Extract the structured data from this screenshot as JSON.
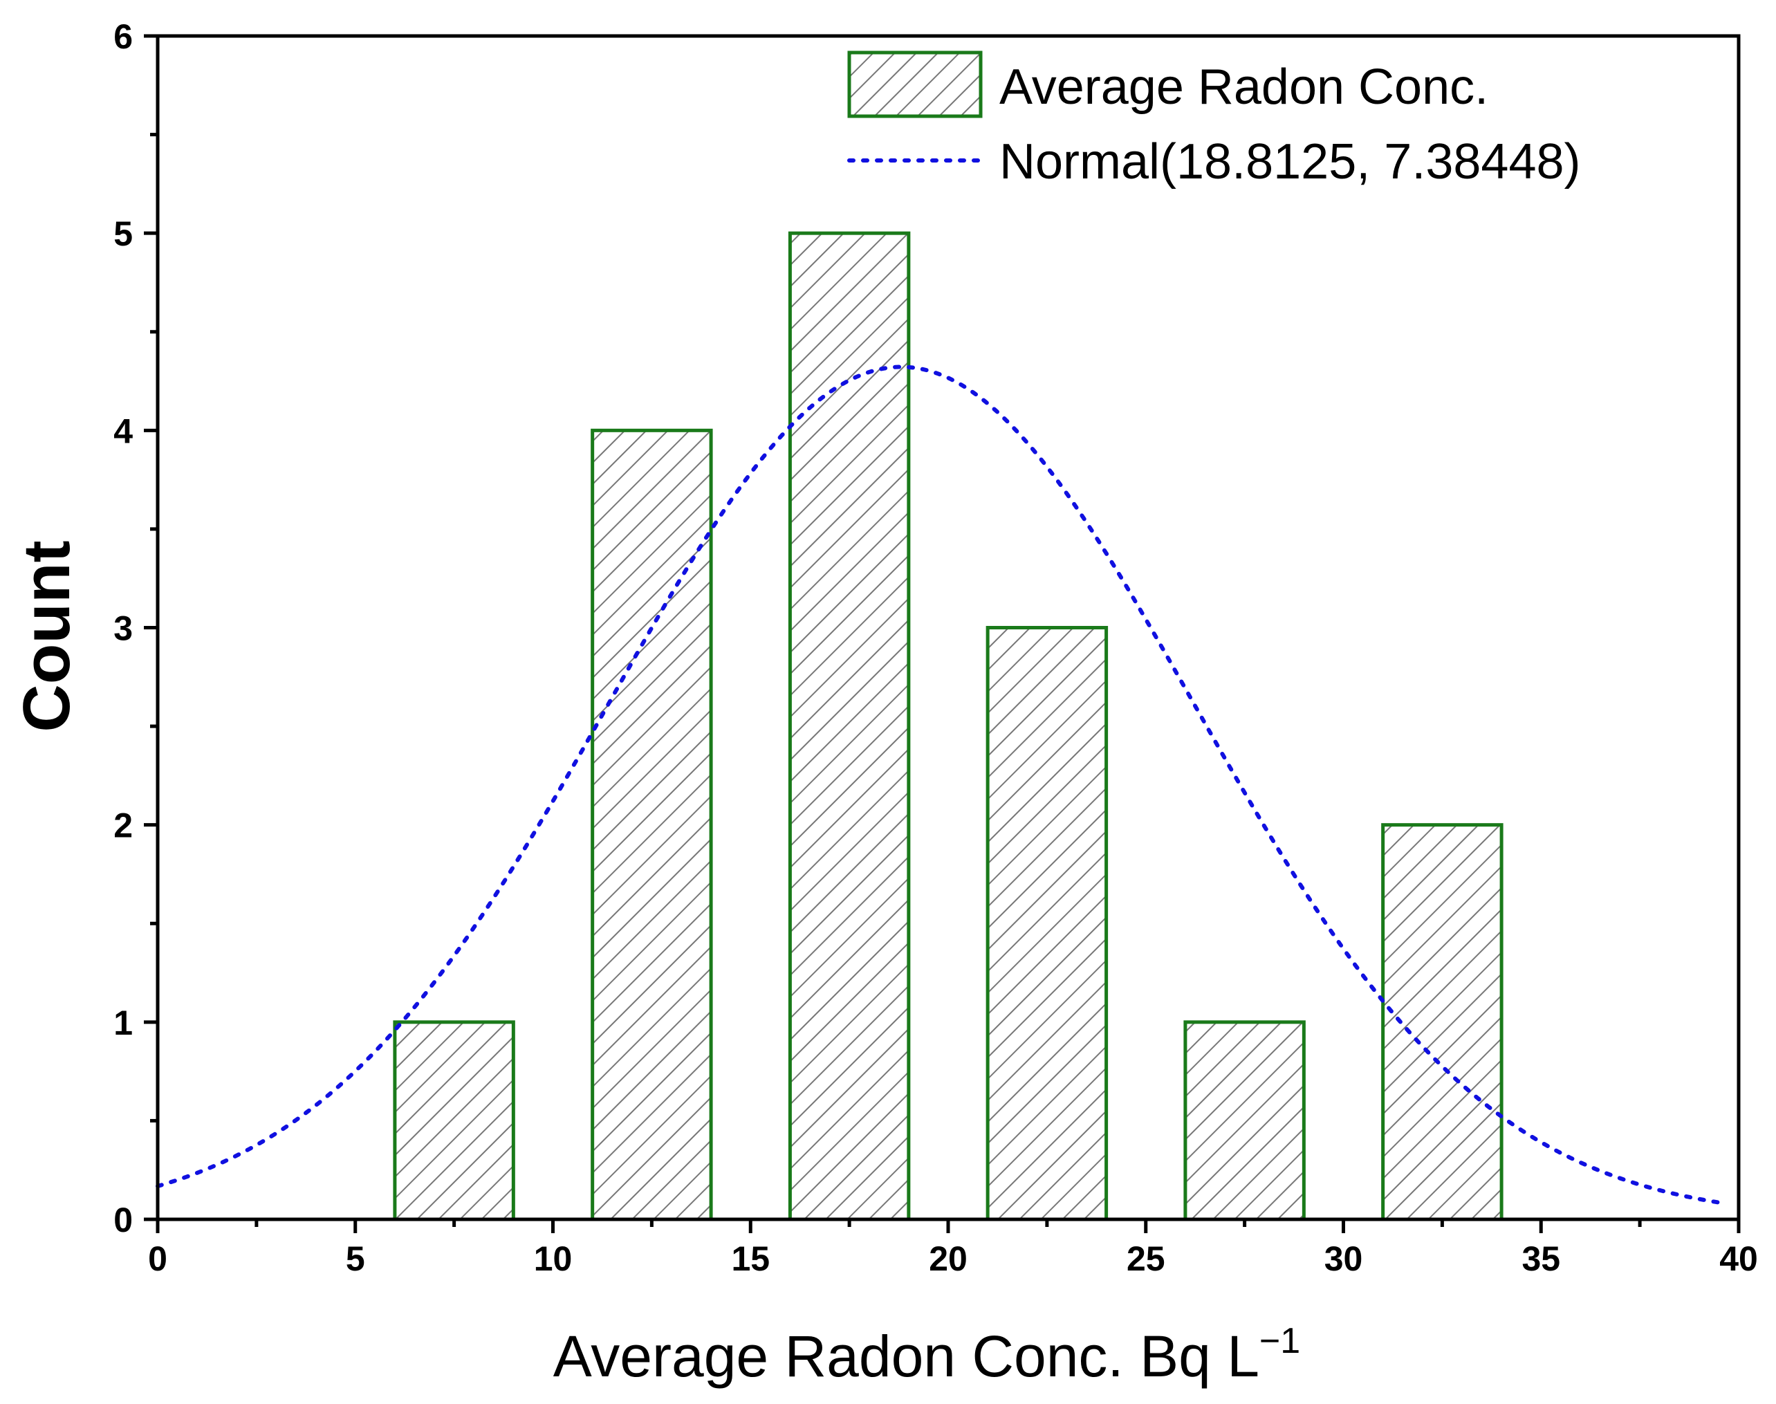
{
  "chart_data": {
    "type": "bar",
    "title": "",
    "xlabel": "Average Radon Conc. Bq L",
    "xlabel_superscript": "−1",
    "ylabel": "Count",
    "xlim": [
      0,
      40
    ],
    "ylim": [
      0,
      6
    ],
    "x_ticks": [
      "0",
      "5",
      "10",
      "15",
      "20",
      "25",
      "30",
      "35",
      "40"
    ],
    "y_ticks": [
      "0",
      "1",
      "2",
      "3",
      "4",
      "5",
      "6"
    ],
    "grid": false,
    "legend_position": "top-right",
    "colors": {
      "bar_edge": "#1a7a1a",
      "hatch": "#777777",
      "curve": "#1010e0",
      "axis": "#000000"
    },
    "series": [
      {
        "name": "Average Radon Conc.",
        "type": "histogram",
        "bins": [
          {
            "start": 6,
            "end": 9,
            "count": 1
          },
          {
            "start": 11,
            "end": 14,
            "count": 4
          },
          {
            "start": 16,
            "end": 19,
            "count": 5
          },
          {
            "start": 21,
            "end": 24,
            "count": 3
          },
          {
            "start": 26,
            "end": 29,
            "count": 1
          },
          {
            "start": 31,
            "end": 34,
            "count": 2
          }
        ]
      },
      {
        "name": "Normal(18.8125, 7.38448)",
        "type": "normal-curve",
        "mean": 18.8125,
        "sd": 7.38448,
        "n": 16,
        "bin_width": 5,
        "x_range": [
          0,
          39.5
        ]
      }
    ]
  }
}
